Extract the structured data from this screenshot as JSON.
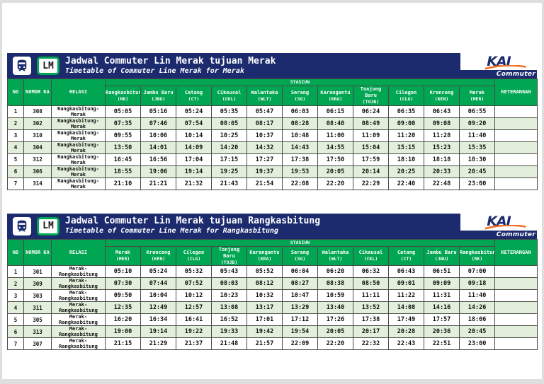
{
  "branding": {
    "lm_logo": "LM",
    "kai_logo": "KAI",
    "kai_sub": "Commuter"
  },
  "colors": {
    "navy": "#1c2a6e",
    "green": "#00a651",
    "row_alt_green": "#e2efda",
    "kai_orange": "#f36f21"
  },
  "tables": [
    {
      "title": "Jadwal Commuter Lin Merak tujuan Merak",
      "subtitle": "Timetable of Commuter Line Merak for Merak",
      "columns": {
        "no": "NO",
        "nomor_ka": "NOMOR KA",
        "relasi": "RELASI",
        "stasiun": "STASIUN",
        "keterangan": "KETERANGAN"
      },
      "stations": [
        {
          "name": "Rangkasbitung",
          "code": "(RK)"
        },
        {
          "name": "Jambu Baru",
          "code": "(JBU)"
        },
        {
          "name": "Catang",
          "code": "(CT)"
        },
        {
          "name": "Cikeusal",
          "code": "(CKL)"
        },
        {
          "name": "Walantaka",
          "code": "(WLT)"
        },
        {
          "name": "Serang",
          "code": "(SG)"
        },
        {
          "name": "Karangantu",
          "code": "(KRA)"
        },
        {
          "name": "Tonjong Baru",
          "code": "(TOJB)"
        },
        {
          "name": "Cilegon",
          "code": "(CLG)"
        },
        {
          "name": "Krenceng",
          "code": "(KEN)"
        },
        {
          "name": "Merak",
          "code": "(MER)"
        }
      ],
      "rows": [
        {
          "no": "1",
          "nomor_ka": "308",
          "relasi": "Rangkasbitung-Merak",
          "times": [
            "05:05",
            "05:16",
            "05:24",
            "05:35",
            "05:47",
            "06:03",
            "06:15",
            "06:24",
            "06:35",
            "06:43",
            "06:55"
          ],
          "keterangan": ""
        },
        {
          "no": "2",
          "nomor_ka": "302",
          "relasi": "Rangkasbitung-Merak",
          "times": [
            "07:35",
            "07:46",
            "07:54",
            "08:05",
            "08:17",
            "08:28",
            "08:40",
            "08:49",
            "09:00",
            "09:08",
            "09:20"
          ],
          "keterangan": ""
        },
        {
          "no": "3",
          "nomor_ka": "310",
          "relasi": "Rangkasbitung-Merak",
          "times": [
            "09:55",
            "10:06",
            "10:14",
            "10:25",
            "10:37",
            "10:48",
            "11:00",
            "11:09",
            "11:20",
            "11:28",
            "11:40"
          ],
          "keterangan": ""
        },
        {
          "no": "4",
          "nomor_ka": "304",
          "relasi": "Rangkasbitung-Merak",
          "times": [
            "13:50",
            "14:01",
            "14:09",
            "14:20",
            "14:32",
            "14:43",
            "14:55",
            "15:04",
            "15:15",
            "15:23",
            "15:35"
          ],
          "keterangan": ""
        },
        {
          "no": "5",
          "nomor_ka": "312",
          "relasi": "Rangkasbitung-Merak",
          "times": [
            "16:45",
            "16:56",
            "17:04",
            "17:15",
            "17:27",
            "17:38",
            "17:50",
            "17:59",
            "18:10",
            "18:18",
            "18:30"
          ],
          "keterangan": ""
        },
        {
          "no": "6",
          "nomor_ka": "306",
          "relasi": "Rangkasbitung-Merak",
          "times": [
            "18:55",
            "19:06",
            "19:14",
            "19:25",
            "19:37",
            "19:53",
            "20:05",
            "20:14",
            "20:25",
            "20:33",
            "20:45"
          ],
          "keterangan": ""
        },
        {
          "no": "7",
          "nomor_ka": "314",
          "relasi": "Rangkasbitung-Merak",
          "times": [
            "21:10",
            "21:21",
            "21:32",
            "21:43",
            "21:54",
            "22:08",
            "22:20",
            "22:29",
            "22:40",
            "22:48",
            "23:00"
          ],
          "keterangan": ""
        }
      ]
    },
    {
      "title": "Jadwal Commuter Lin Merak tujuan Rangkasbitung",
      "subtitle": "Timetable of Commuter Line Merak for Rangkasbitung",
      "columns": {
        "no": "NO",
        "nomor_ka": "NOMOR KA",
        "relasi": "RELASI",
        "stasiun": "STASIUN",
        "keterangan": "KETERANGAN"
      },
      "stations": [
        {
          "name": "Merak",
          "code": "(MER)"
        },
        {
          "name": "Krenceng",
          "code": "(KEN)"
        },
        {
          "name": "Cilegon",
          "code": "(CLG)"
        },
        {
          "name": "Tonjong Baru",
          "code": "(TOJB)"
        },
        {
          "name": "Karangantu",
          "code": "(KRA)"
        },
        {
          "name": "Serang",
          "code": "(SG)"
        },
        {
          "name": "Walantaka",
          "code": "(WLT)"
        },
        {
          "name": "Cikeusal",
          "code": "(CKL)"
        },
        {
          "name": "Catang",
          "code": "(CT)"
        },
        {
          "name": "Jambu Baru",
          "code": "(JBU)"
        },
        {
          "name": "Rangkasbitung",
          "code": "(RK)"
        }
      ],
      "rows": [
        {
          "no": "1",
          "nomor_ka": "301",
          "relasi": "Merak-Rangkasbitung",
          "times": [
            "05:10",
            "05:24",
            "05:32",
            "05:43",
            "05:52",
            "06:04",
            "06:20",
            "06:32",
            "06:43",
            "06:51",
            "07:00"
          ],
          "keterangan": ""
        },
        {
          "no": "2",
          "nomor_ka": "309",
          "relasi": "Merak-Rangkasbitung",
          "times": [
            "07:30",
            "07:44",
            "07:52",
            "08:03",
            "08:12",
            "08:27",
            "08:38",
            "08:50",
            "09:01",
            "09:09",
            "09:18"
          ],
          "keterangan": ""
        },
        {
          "no": "3",
          "nomor_ka": "303",
          "relasi": "Merak-Rangkasbitung",
          "times": [
            "09:50",
            "10:04",
            "10:12",
            "10:23",
            "10:32",
            "10:47",
            "10:59",
            "11:11",
            "11:22",
            "11:31",
            "11:40"
          ],
          "keterangan": ""
        },
        {
          "no": "4",
          "nomor_ka": "311",
          "relasi": "Merak-Rangkasbitung",
          "times": [
            "12:35",
            "12:49",
            "12:57",
            "13:08",
            "13:17",
            "13:29",
            "13:40",
            "13:52",
            "14:08",
            "14:16",
            "14:26"
          ],
          "keterangan": ""
        },
        {
          "no": "5",
          "nomor_ka": "305",
          "relasi": "Merak-Rangkasbitung",
          "times": [
            "16:20",
            "16:34",
            "16:41",
            "16:52",
            "17:01",
            "17:12",
            "17:26",
            "17:38",
            "17:49",
            "17:57",
            "18:06"
          ],
          "keterangan": ""
        },
        {
          "no": "6",
          "nomor_ka": "313",
          "relasi": "Merak-Rangkasbitung",
          "times": [
            "19:00",
            "19:14",
            "19:22",
            "19:33",
            "19:42",
            "19:54",
            "20:05",
            "20:17",
            "20:28",
            "20:36",
            "20:45"
          ],
          "keterangan": ""
        },
        {
          "no": "7",
          "nomor_ka": "307",
          "relasi": "Merak-Rangkasbitung",
          "times": [
            "21:15",
            "21:29",
            "21:37",
            "21:48",
            "21:57",
            "22:09",
            "22:20",
            "22:32",
            "22:43",
            "22:51",
            "23:00"
          ],
          "keterangan": ""
        }
      ]
    }
  ]
}
